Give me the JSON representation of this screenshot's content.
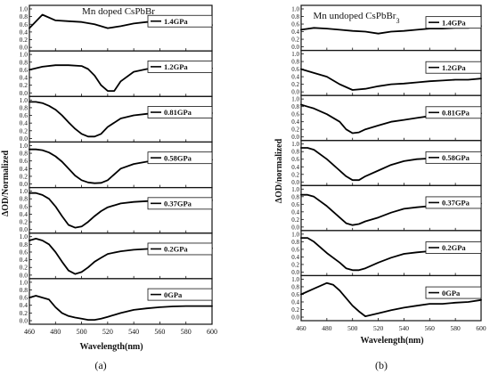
{
  "chart_data": [
    {
      "type": "line",
      "panel_label": "(a)",
      "title": "Mn doped CsPbBr",
      "title_sub": "",
      "xlabel": "Wavelength(nm)",
      "ylabel": "ΔOD/Normalized",
      "xlim": [
        460,
        600
      ],
      "xticks": [
        460,
        480,
        500,
        520,
        540,
        560,
        580,
        600
      ],
      "ylim": [
        0.0,
        1.0
      ],
      "yticks": [
        0.0,
        0.2,
        0.4,
        0.6,
        0.8,
        1.0
      ],
      "series": [
        {
          "name": "1.4GPa",
          "x": [
            460,
            470,
            480,
            490,
            500,
            510,
            520,
            530,
            540,
            550,
            560,
            570,
            580,
            590,
            600
          ],
          "y": [
            0.5,
            0.85,
            0.7,
            0.68,
            0.66,
            0.6,
            0.5,
            0.55,
            0.62,
            0.66,
            0.66,
            0.64,
            0.62,
            0.6,
            0.58
          ]
        },
        {
          "name": "1.2GPa",
          "x": [
            460,
            470,
            480,
            490,
            500,
            505,
            510,
            515,
            520,
            525,
            530,
            540,
            550,
            560,
            570,
            580,
            590,
            600
          ],
          "y": [
            0.6,
            0.68,
            0.72,
            0.72,
            0.7,
            0.62,
            0.45,
            0.2,
            0.05,
            0.05,
            0.3,
            0.55,
            0.62,
            0.64,
            0.64,
            0.64,
            0.64,
            0.64
          ]
        },
        {
          "name": "0.81GPa",
          "x": [
            460,
            465,
            470,
            475,
            480,
            485,
            490,
            495,
            500,
            505,
            510,
            515,
            520,
            530,
            540,
            550,
            560,
            570,
            580,
            590,
            600
          ],
          "y": [
            0.95,
            0.95,
            0.92,
            0.85,
            0.75,
            0.6,
            0.42,
            0.25,
            0.12,
            0.05,
            0.05,
            0.12,
            0.3,
            0.52,
            0.6,
            0.64,
            0.66,
            0.66,
            0.66,
            0.66,
            0.66
          ]
        },
        {
          "name": "0.58GPa",
          "x": [
            460,
            465,
            470,
            475,
            480,
            485,
            490,
            495,
            500,
            505,
            510,
            515,
            520,
            525,
            530,
            540,
            550,
            560,
            570,
            580,
            590,
            600
          ],
          "y": [
            0.9,
            0.9,
            0.88,
            0.82,
            0.72,
            0.58,
            0.4,
            0.22,
            0.1,
            0.04,
            0.02,
            0.03,
            0.1,
            0.25,
            0.4,
            0.52,
            0.58,
            0.6,
            0.62,
            0.62,
            0.63,
            0.63
          ]
        },
        {
          "name": "0.37GPa",
          "x": [
            460,
            465,
            470,
            475,
            480,
            485,
            490,
            495,
            500,
            505,
            510,
            515,
            520,
            530,
            540,
            550,
            560,
            570,
            580,
            590,
            600
          ],
          "y": [
            0.95,
            0.95,
            0.9,
            0.8,
            0.6,
            0.35,
            0.12,
            0.05,
            0.08,
            0.2,
            0.35,
            0.48,
            0.58,
            0.68,
            0.72,
            0.74,
            0.75,
            0.76,
            0.76,
            0.76,
            0.76
          ]
        },
        {
          "name": "0.2GPa",
          "x": [
            460,
            465,
            470,
            475,
            480,
            485,
            490,
            495,
            500,
            505,
            510,
            515,
            520,
            530,
            540,
            550,
            560,
            570,
            580,
            590,
            600
          ],
          "y": [
            0.9,
            0.95,
            0.9,
            0.8,
            0.6,
            0.35,
            0.12,
            0.03,
            0.08,
            0.2,
            0.35,
            0.45,
            0.55,
            0.62,
            0.66,
            0.68,
            0.7,
            0.7,
            0.7,
            0.7,
            0.7
          ]
        },
        {
          "name": "0GPa",
          "x": [
            460,
            465,
            470,
            475,
            480,
            485,
            490,
            495,
            500,
            505,
            510,
            515,
            520,
            530,
            540,
            550,
            560,
            570,
            580,
            590,
            600
          ],
          "y": [
            0.6,
            0.65,
            0.6,
            0.55,
            0.35,
            0.2,
            0.12,
            0.08,
            0.05,
            0.02,
            0.02,
            0.05,
            0.1,
            0.2,
            0.28,
            0.32,
            0.35,
            0.37,
            0.38,
            0.38,
            0.38
          ]
        }
      ]
    },
    {
      "type": "line",
      "panel_label": "(b)",
      "title": "Mn undoped CsPbBr",
      "title_sub": "3",
      "xlabel": "Wavelength(nm)",
      "ylabel": "ΔOD/normalized",
      "xlim": [
        460,
        600
      ],
      "xticks": [
        460,
        480,
        500,
        520,
        540,
        560,
        580,
        600
      ],
      "ylim": [
        0.0,
        1.0
      ],
      "yticks": [
        0.0,
        0.2,
        0.4,
        0.6,
        0.8,
        1.0
      ],
      "series": [
        {
          "name": "1.4GPa",
          "x": [
            460,
            470,
            480,
            490,
            500,
            510,
            520,
            530,
            540,
            550,
            560,
            570,
            580,
            590,
            600
          ],
          "y": [
            0.45,
            0.5,
            0.48,
            0.45,
            0.42,
            0.4,
            0.35,
            0.4,
            0.42,
            0.45,
            0.48,
            0.48,
            0.5,
            0.5,
            0.55
          ]
        },
        {
          "name": "1.2GPa",
          "x": [
            460,
            470,
            480,
            490,
            500,
            510,
            520,
            530,
            540,
            550,
            560,
            570,
            580,
            590,
            600
          ],
          "y": [
            0.6,
            0.5,
            0.4,
            0.2,
            0.05,
            0.08,
            0.15,
            0.2,
            0.22,
            0.25,
            0.28,
            0.3,
            0.32,
            0.32,
            0.35
          ]
        },
        {
          "name": "0.81GPa",
          "x": [
            460,
            465,
            470,
            480,
            490,
            495,
            500,
            505,
            510,
            520,
            530,
            540,
            550,
            560,
            570,
            580,
            590,
            600
          ],
          "y": [
            0.85,
            0.8,
            0.75,
            0.6,
            0.4,
            0.2,
            0.1,
            0.12,
            0.2,
            0.3,
            0.4,
            0.45,
            0.5,
            0.55,
            0.58,
            0.6,
            0.6,
            0.62
          ]
        },
        {
          "name": "0.58GPa",
          "x": [
            460,
            465,
            470,
            480,
            490,
            495,
            500,
            505,
            510,
            520,
            530,
            540,
            550,
            560,
            570,
            580,
            590,
            600
          ],
          "y": [
            0.9,
            0.9,
            0.85,
            0.6,
            0.3,
            0.15,
            0.05,
            0.05,
            0.15,
            0.3,
            0.45,
            0.55,
            0.6,
            0.62,
            0.65,
            0.68,
            0.68,
            0.7
          ]
        },
        {
          "name": "0.37GPa",
          "x": [
            460,
            465,
            470,
            480,
            490,
            495,
            500,
            505,
            510,
            520,
            530,
            540,
            550,
            560,
            570,
            580,
            590,
            600
          ],
          "y": [
            0.85,
            0.85,
            0.8,
            0.55,
            0.25,
            0.1,
            0.05,
            0.08,
            0.15,
            0.25,
            0.38,
            0.48,
            0.52,
            0.55,
            0.58,
            0.6,
            0.6,
            0.62
          ]
        },
        {
          "name": "0.2GPa",
          "x": [
            460,
            465,
            470,
            480,
            490,
            495,
            500,
            505,
            510,
            520,
            530,
            540,
            550,
            560,
            570,
            580,
            590,
            600
          ],
          "y": [
            0.9,
            0.9,
            0.8,
            0.5,
            0.25,
            0.1,
            0.05,
            0.05,
            0.1,
            0.25,
            0.38,
            0.48,
            0.52,
            0.55,
            0.55,
            0.56,
            0.55,
            0.56
          ]
        },
        {
          "name": "0GPa",
          "x": [
            460,
            470,
            480,
            485,
            490,
            495,
            500,
            505,
            510,
            520,
            530,
            540,
            550,
            560,
            570,
            580,
            590,
            600
          ],
          "y": [
            0.6,
            0.75,
            0.9,
            0.85,
            0.7,
            0.5,
            0.3,
            0.15,
            0.02,
            0.1,
            0.18,
            0.25,
            0.3,
            0.35,
            0.35,
            0.38,
            0.4,
            0.45
          ]
        }
      ]
    }
  ]
}
